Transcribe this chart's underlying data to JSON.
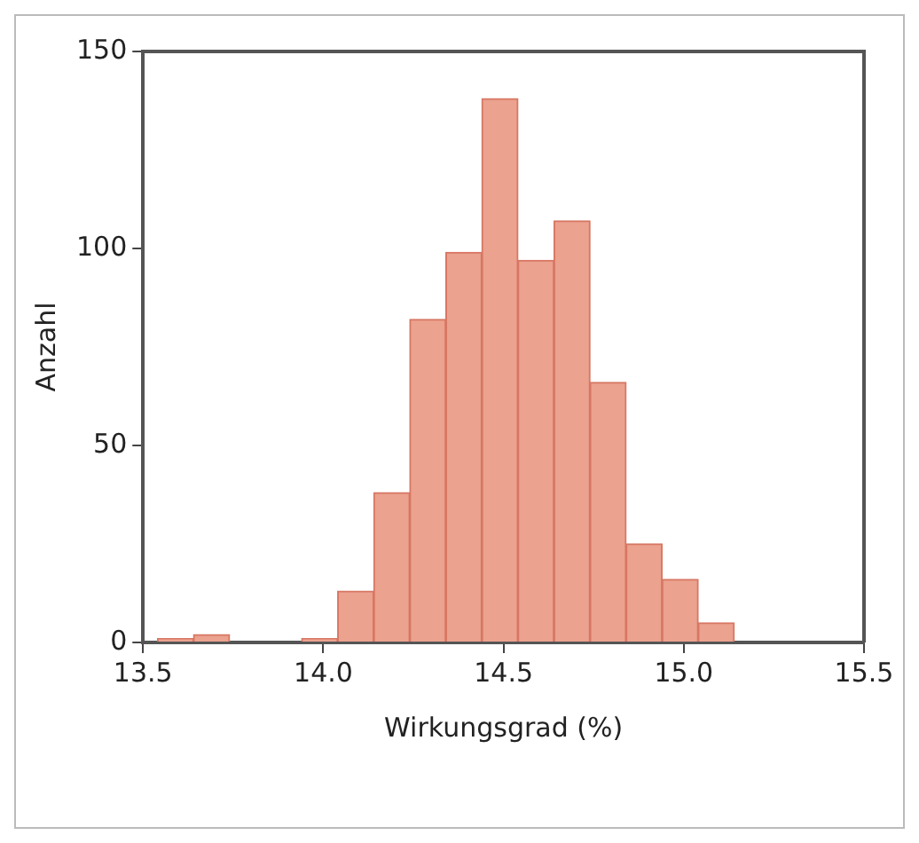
{
  "chart_data": {
    "type": "histogram",
    "xlabel": "Wirkungsgrad (%)",
    "ylabel": "Anzahl",
    "bins": [
      13.54,
      13.64,
      13.74,
      13.84,
      13.94,
      14.04,
      14.14,
      14.24,
      14.34,
      14.44,
      14.54,
      14.64,
      14.74,
      14.84,
      14.94,
      15.04,
      15.14
    ],
    "values": [
      1,
      2,
      0,
      0,
      1,
      13,
      38,
      82,
      99,
      138,
      97,
      107,
      66,
      25,
      16,
      5
    ],
    "color": "#eba28f",
    "xlim": [
      13.5,
      15.5
    ],
    "xticks": [
      13.5,
      {
        "value": 14,
        "label": "14.0"
      },
      14.5,
      {
        "value": 15,
        "label": "15.0"
      },
      15.5
    ],
    "ylim": [
      0,
      150
    ],
    "yticks": [
      0,
      50,
      100,
      150
    ],
    "grid": false,
    "legend": false
  }
}
